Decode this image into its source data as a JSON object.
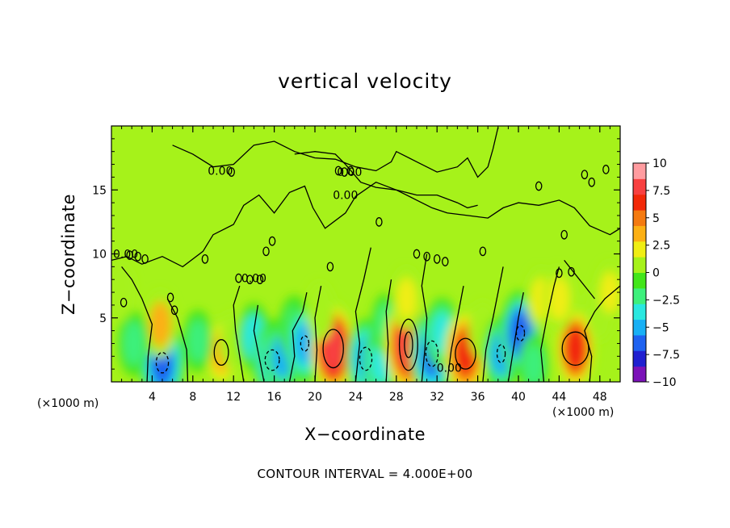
{
  "chart_data": {
    "type": "heatmap",
    "title": "vertical velocity",
    "xlabel": "X−coordinate",
    "ylabel": "Z−coordinate",
    "x_unit_left": "(×1000 m)",
    "x_unit_right": "(×1000 m)",
    "xlim": [
      0,
      50
    ],
    "ylim": [
      0,
      20
    ],
    "x_ticks": [
      4,
      8,
      12,
      16,
      20,
      24,
      28,
      32,
      36,
      40,
      44,
      48
    ],
    "y_ticks": [
      5,
      10,
      15
    ],
    "contour_interval_label": "CONTOUR INTERVAL = 4.000E+00",
    "contour_labels": [
      {
        "text": "0.00",
        "x": 10.7,
        "y": 16.5
      },
      {
        "text": "0.00",
        "x": 23.4,
        "y": 16.4
      },
      {
        "text": "0.00",
        "x": 23.0,
        "y": 14.6
      },
      {
        "text": "0.00",
        "x": 1.4,
        "y": 10.0
      },
      {
        "text": "0.00",
        "x": 14.0,
        "y": 8.1
      },
      {
        "text": "0.00",
        "x": 33.2,
        "y": 1.1
      }
    ],
    "colorbar": {
      "min": -10,
      "max": 10,
      "tick_labels": [
        "10",
        "7.5",
        "5",
        "2.5",
        "0",
        "−2.5",
        "−5",
        "−7.5",
        "−10"
      ],
      "tick_values": [
        10,
        7.5,
        5,
        2.5,
        0,
        -2.5,
        -5,
        -7.5,
        -10
      ],
      "colors": [
        "#7b12b8",
        "#2020d0",
        "#1e62f0",
        "#18b0f5",
        "#2ae8e0",
        "#3ef07c",
        "#42e61a",
        "#a6f21a",
        "#f0ee14",
        "#fcb014",
        "#f47a10",
        "#f22808",
        "#f84040",
        "#ff9ca0"
      ]
    },
    "anomalies": [
      {
        "x": 5.0,
        "z": 1.5,
        "w": -7.0
      },
      {
        "x": 4.8,
        "z": 4.5,
        "w": 3.0
      },
      {
        "x": 10.8,
        "z": 2.3,
        "w": 3.5
      },
      {
        "x": 12.0,
        "z": 3.2,
        "w": 1.5
      },
      {
        "x": 14.0,
        "z": 3.5,
        "w": -3.0
      },
      {
        "x": 15.8,
        "z": 1.7,
        "w": -5.0
      },
      {
        "x": 16.8,
        "z": 2.0,
        "w": -4.5
      },
      {
        "x": 18.0,
        "z": 4.2,
        "w": -2.5
      },
      {
        "x": 19.0,
        "z": 3.0,
        "w": -5.0
      },
      {
        "x": 21.8,
        "z": 2.6,
        "w": 7.5
      },
      {
        "x": 20.5,
        "z": 5.5,
        "w": 1.5
      },
      {
        "x": 25.0,
        "z": 1.8,
        "w": -5.0
      },
      {
        "x": 26.5,
        "z": 1.6,
        "w": -4.0
      },
      {
        "x": 27.0,
        "z": 4.5,
        "w": -2.0
      },
      {
        "x": 29.2,
        "z": 2.9,
        "w": 8.5
      },
      {
        "x": 29.0,
        "z": 6.5,
        "w": 2.0
      },
      {
        "x": 31.5,
        "z": 2.2,
        "w": -6.5
      },
      {
        "x": 32.5,
        "z": 3.8,
        "w": -3.5
      },
      {
        "x": 34.8,
        "z": 2.2,
        "w": 6.5
      },
      {
        "x": 36.5,
        "z": 4.0,
        "w": 1.5
      },
      {
        "x": 38.3,
        "z": 2.2,
        "w": -4.5
      },
      {
        "x": 40.2,
        "z": 3.8,
        "w": -6.0
      },
      {
        "x": 41.5,
        "z": 1.3,
        "w": -2.0
      },
      {
        "x": 45.6,
        "z": 2.6,
        "w": 6.0
      },
      {
        "x": 42.2,
        "z": 6.5,
        "w": 2.0
      },
      {
        "x": 44.0,
        "z": 6.5,
        "w": 2.5
      },
      {
        "x": 48.0,
        "z": 5.5,
        "w": 1.5
      },
      {
        "x": 49.0,
        "z": 7.0,
        "w": 1.8
      },
      {
        "x": 2.2,
        "z": 3.0,
        "w": -2.5
      },
      {
        "x": 8.5,
        "z": 3.2,
        "w": -2.0
      },
      {
        "x": 1.0,
        "z": 7.0,
        "w": 1.0
      }
    ]
  }
}
